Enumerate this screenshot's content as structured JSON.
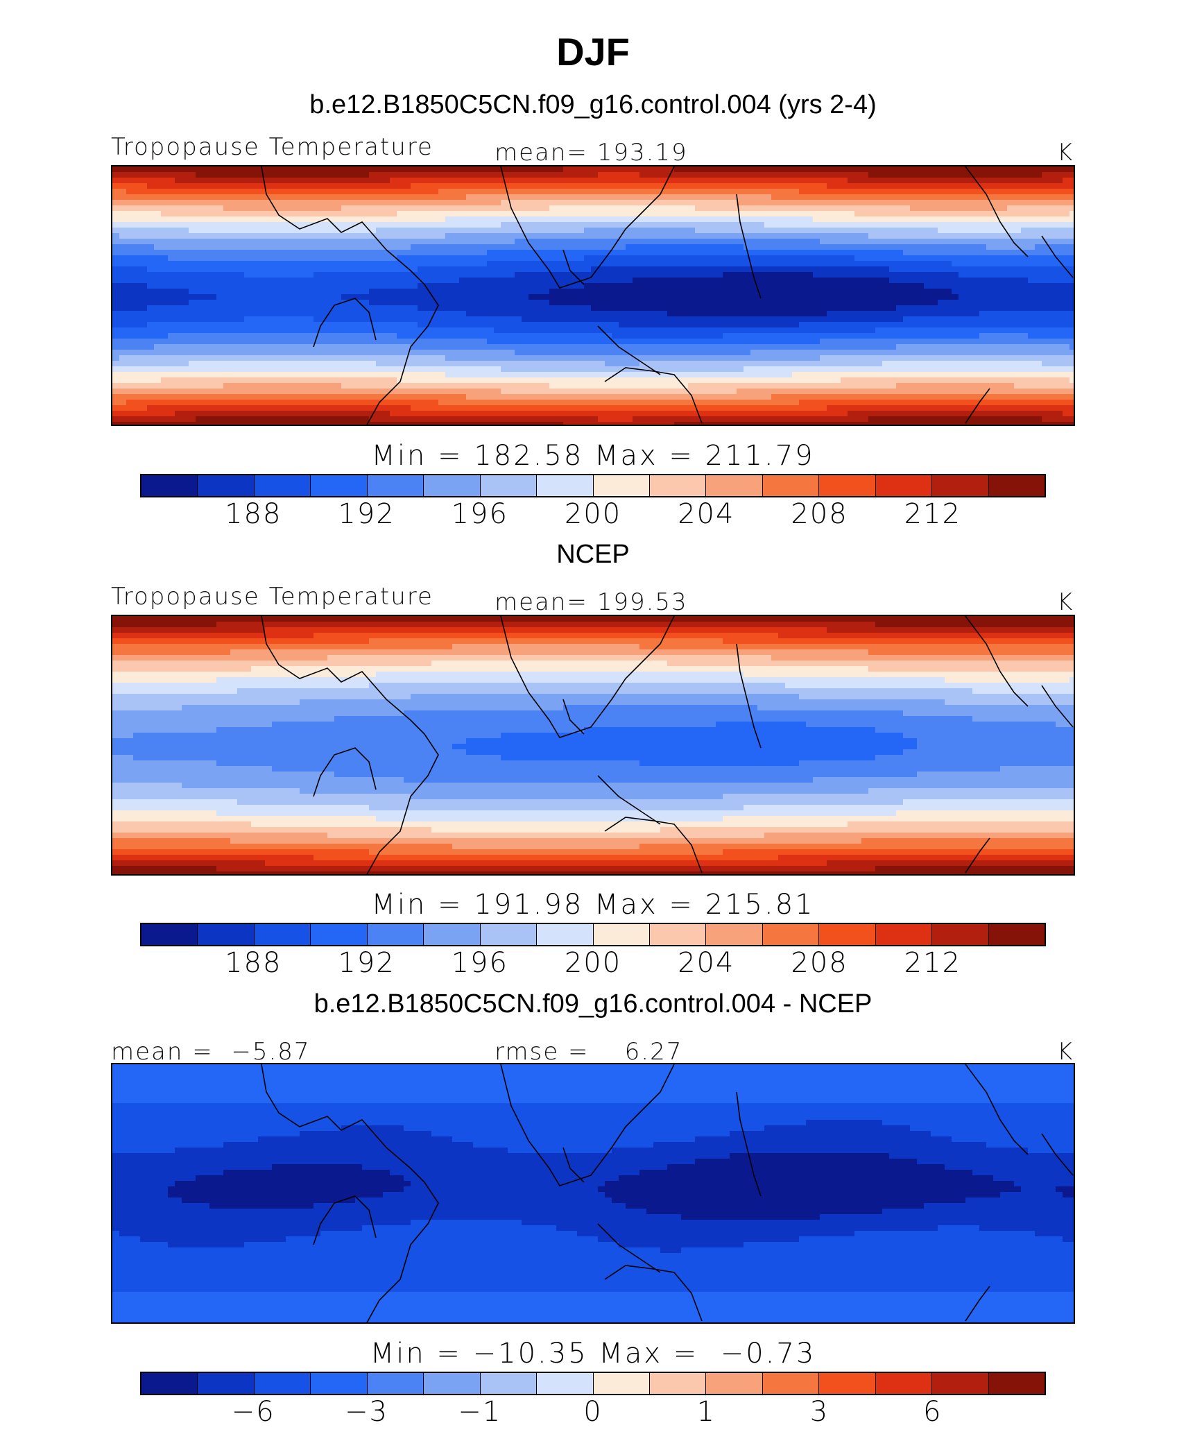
{
  "figure_title": "DJF",
  "colorbar_colors": [
    "#0a1a8e",
    "#0d35c4",
    "#1652e6",
    "#2466f5",
    "#4b83f5",
    "#7aa3f3",
    "#a9c3f6",
    "#d4e3fb",
    "#fdebd9",
    "#fbc8ad",
    "#f8a27c",
    "#f5763f",
    "#f2501c",
    "#de3113",
    "#b21f0f",
    "#861308"
  ],
  "panels": [
    {
      "title": "b.e12.B1850C5CN.f09_g16.control.004 (yrs 2-4)",
      "left_label": "Tropopause Temperature",
      "center_label": "mean= 193.19",
      "units": "K",
      "minmax": "Min = 182.58 Max = 211.79",
      "ticks": [
        "188",
        "192",
        "196",
        "200",
        "204",
        "208",
        "212"
      ],
      "field": "model"
    },
    {
      "title": "NCEP",
      "left_label": "Tropopause Temperature",
      "center_label": "mean= 199.53",
      "units": "K",
      "minmax": "Min = 191.98 Max = 215.81",
      "ticks": [
        "188",
        "192",
        "196",
        "200",
        "204",
        "208",
        "212"
      ],
      "field": "ncep"
    },
    {
      "title": "b.e12.B1850C5CN.f09_g16.control.004 - NCEP",
      "left_label": "mean =  −5.87",
      "center_label": "rmse =    6.27",
      "units": "K",
      "minmax": "Min = −10.35 Max =  −0.73",
      "ticks": [
        "−6",
        "−3",
        "−1",
        "0",
        "1",
        "3",
        "6"
      ],
      "field": "diff"
    }
  ]
}
